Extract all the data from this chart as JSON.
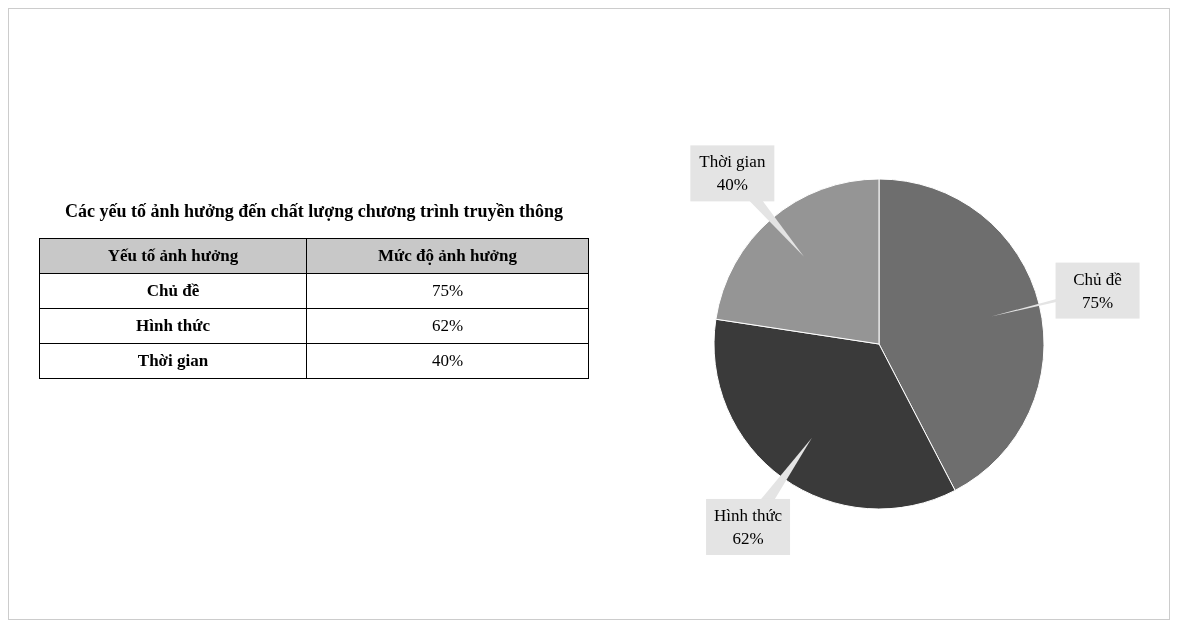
{
  "chart_data": {
    "type": "pie",
    "title": "Các yếu tố ảnh hưởng đến chất lượng chương trình truyền thông",
    "annotations": [
      "Yếu tố ảnh hưởng",
      "Mức độ ảnh hưởng"
    ],
    "categories": [
      "Chủ đề",
      "Hình thức",
      "Thời gian"
    ],
    "values": [
      75,
      62,
      40
    ],
    "value_labels": [
      "75%",
      "62%",
      "40%"
    ],
    "colors": [
      "#6e6e6e",
      "#3a3a3a",
      "#959595"
    ],
    "legend": false
  }
}
